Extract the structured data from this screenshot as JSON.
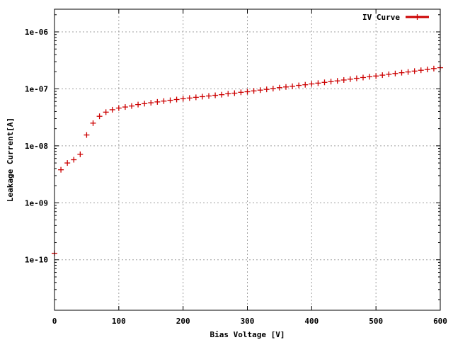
{
  "chart_data": {
    "type": "scatter",
    "title": "",
    "xlabel": "Bias Voltage [V]",
    "ylabel": "Leakage Current[A]",
    "xlim": [
      0,
      600
    ],
    "ylim": [
      1.3e-11,
      2.5e-06
    ],
    "y_scale": "log",
    "grid": true,
    "legend_position": "top-right",
    "x_ticks": [
      {
        "value": 0,
        "label": "0"
      },
      {
        "value": 100,
        "label": "100"
      },
      {
        "value": 200,
        "label": "200"
      },
      {
        "value": 300,
        "label": "300"
      },
      {
        "value": 400,
        "label": "400"
      },
      {
        "value": 500,
        "label": "500"
      },
      {
        "value": 600,
        "label": "600"
      }
    ],
    "y_ticks": [
      {
        "value": 1e-10,
        "label": "1e-10"
      },
      {
        "value": 1e-09,
        "label": "1e-09"
      },
      {
        "value": 1e-08,
        "label": "1e-08"
      },
      {
        "value": 1e-07,
        "label": "1e-07"
      },
      {
        "value": 1e-06,
        "label": "1e-06"
      }
    ],
    "series": [
      {
        "name": "IV Curve",
        "color": "#cc0000",
        "marker": "plus",
        "x": [
          0,
          10,
          20,
          30,
          40,
          50,
          60,
          70,
          80,
          90,
          100,
          110,
          120,
          130,
          140,
          150,
          160,
          170,
          180,
          190,
          200,
          210,
          220,
          230,
          240,
          250,
          260,
          270,
          280,
          290,
          300,
          310,
          320,
          330,
          340,
          350,
          360,
          370,
          380,
          390,
          400,
          410,
          420,
          430,
          440,
          450,
          460,
          470,
          480,
          490,
          500,
          510,
          520,
          530,
          540,
          550,
          560,
          570,
          580,
          590,
          600
        ],
        "y": [
          1.3e-10,
          3.8e-09,
          5e-09,
          5.7e-09,
          7.1e-09,
          1.55e-08,
          2.5e-08,
          3.3e-08,
          3.9e-08,
          4.3e-08,
          4.6e-08,
          4.8e-08,
          5e-08,
          5.3e-08,
          5.5e-08,
          5.7e-08,
          5.9e-08,
          6.1e-08,
          6.3e-08,
          6.5e-08,
          6.7e-08,
          6.9e-08,
          7.1e-08,
          7.3e-08,
          7.5e-08,
          7.7e-08,
          7.9e-08,
          8.2e-08,
          8.4e-08,
          8.7e-08,
          8.9e-08,
          9.2e-08,
          9.5e-08,
          9.8e-08,
          1.01e-07,
          1.05e-07,
          1.08e-07,
          1.11e-07,
          1.15e-07,
          1.18e-07,
          1.22e-07,
          1.26e-07,
          1.3e-07,
          1.34e-07,
          1.38e-07,
          1.43e-07,
          1.48e-07,
          1.53e-07,
          1.58e-07,
          1.63e-07,
          1.68e-07,
          1.74e-07,
          1.8e-07,
          1.86e-07,
          1.92e-07,
          1.98e-07,
          2.05e-07,
          2.12e-07,
          2.19e-07,
          2.27e-07,
          2.35e-07
        ]
      }
    ]
  }
}
